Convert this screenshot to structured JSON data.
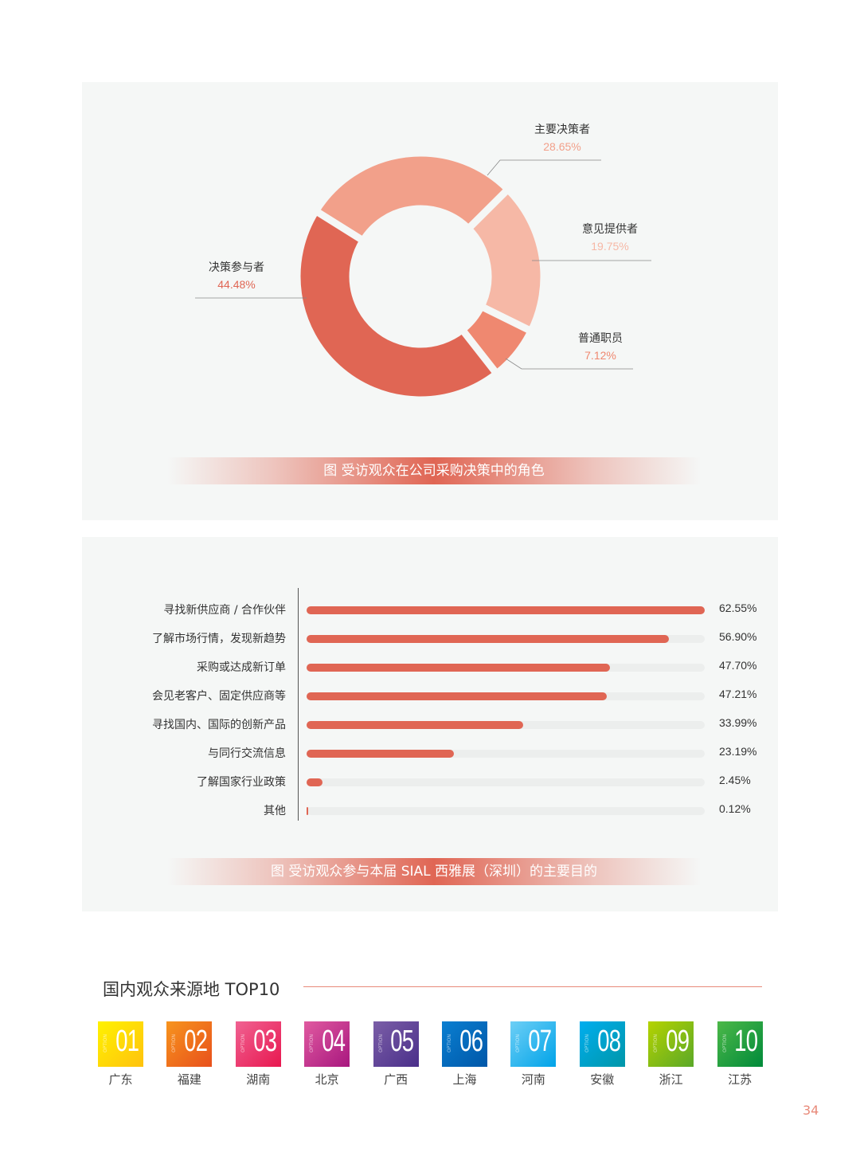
{
  "donut": {
    "caption": "图  受访观众在公司采购决策中的角色",
    "slices": [
      {
        "label": "主要决策者",
        "value": 28.65,
        "display": "28.65%",
        "color": "#f2a08a"
      },
      {
        "label": "意见提供者",
        "value": 19.75,
        "display": "19.75%",
        "color": "#f6b8a6"
      },
      {
        "label": "普通职员",
        "value": 7.12,
        "display": "7.12%",
        "color": "#ef8870"
      },
      {
        "label": "决策参与者",
        "value": 44.48,
        "display": "44.48%",
        "color": "#e06654"
      }
    ]
  },
  "chart_data": {
    "type": "bar",
    "orientation": "horizontal",
    "title": "图  受访观众参与本届 SIAL 西雅展（深圳）的主要目的",
    "categories": [
      "寻找新供应商 / 合作伙伴",
      "了解市场行情，发现新趋势",
      "采购或达成新订单",
      "会见老客户、固定供应商等",
      "寻找国内、国际的创新产品",
      "与同行交流信息",
      "了解国家行业政策",
      "其他"
    ],
    "values": [
      62.55,
      56.9,
      47.7,
      47.21,
      33.99,
      23.19,
      2.45,
      0.12
    ],
    "labels": [
      "62.55%",
      "56.90%",
      "47.70%",
      "47.21%",
      "33.99%",
      "23.19%",
      "2.45%",
      "0.12%"
    ],
    "color": "#e06654"
  },
  "top10": {
    "title": "国内观众来源地 TOP10",
    "option_text": "OPTION",
    "items": [
      {
        "num": "01",
        "city": "广东",
        "c1": "#fff200",
        "c2": "#ffc20e"
      },
      {
        "num": "02",
        "city": "福建",
        "c1": "#f7941d",
        "c2": "#e8501c"
      },
      {
        "num": "03",
        "city": "湖南",
        "c1": "#f06292",
        "c2": "#e8174f"
      },
      {
        "num": "04",
        "city": "北京",
        "c1": "#e05aa0",
        "c2": "#a8177f"
      },
      {
        "num": "05",
        "city": "广西",
        "c1": "#7b5ea7",
        "c2": "#4a2f8a"
      },
      {
        "num": "06",
        "city": "上海",
        "c1": "#0a7fd1",
        "c2": "#0057a8"
      },
      {
        "num": "07",
        "city": "河南",
        "c1": "#6dcff6",
        "c2": "#00a3e8"
      },
      {
        "num": "08",
        "city": "安徽",
        "c1": "#00aeef",
        "c2": "#0096a8"
      },
      {
        "num": "09",
        "city": "浙江",
        "c1": "#b5d300",
        "c2": "#5aa828"
      },
      {
        "num": "10",
        "city": "江苏",
        "c1": "#4cb848",
        "c2": "#008a3a"
      }
    ]
  },
  "page_number": "34"
}
